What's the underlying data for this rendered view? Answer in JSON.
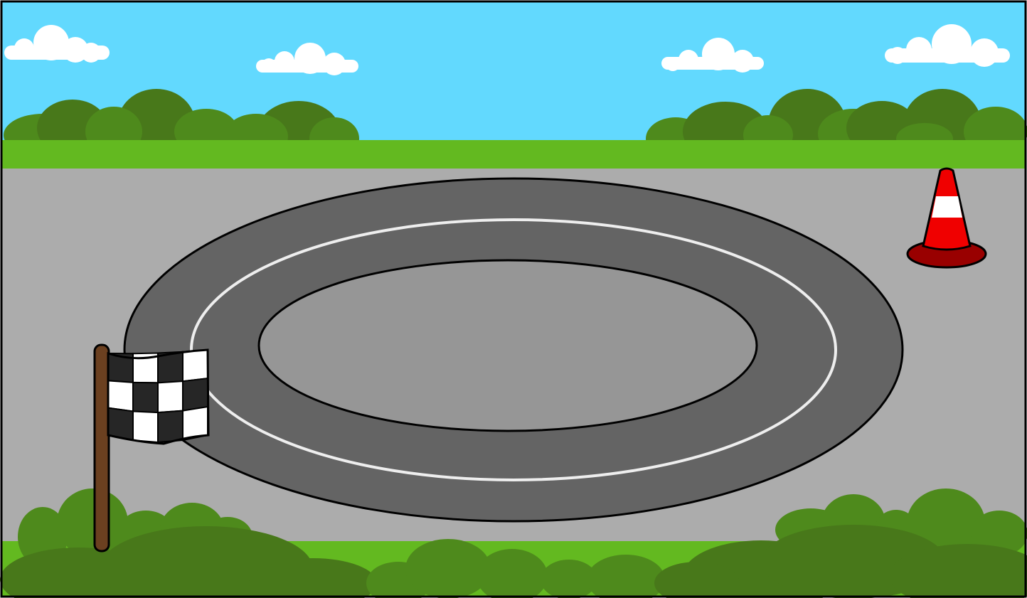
{
  "scene": {
    "colors": {
      "sky": "#62d9fe",
      "cloud": "#ffffff",
      "grass": "#63b920",
      "bush_dark": "#48781a",
      "bush_mid": "#4e8a1c",
      "ground": "#acacac",
      "track": "#646464",
      "infield": "#969696",
      "lane_line": "#eeeeee",
      "outline": "#000000",
      "pole": "#6b4020",
      "flag_dark": "#262626",
      "flag_light": "#ffffff",
      "cone_red": "#f00000",
      "cone_base": "#990000",
      "cone_stripe": "#ffffff"
    },
    "icons": {
      "flag": "checkered-flag-icon",
      "cone": "traffic-cone-icon",
      "cloud": "cloud-icon",
      "bush": "bush-icon"
    }
  }
}
